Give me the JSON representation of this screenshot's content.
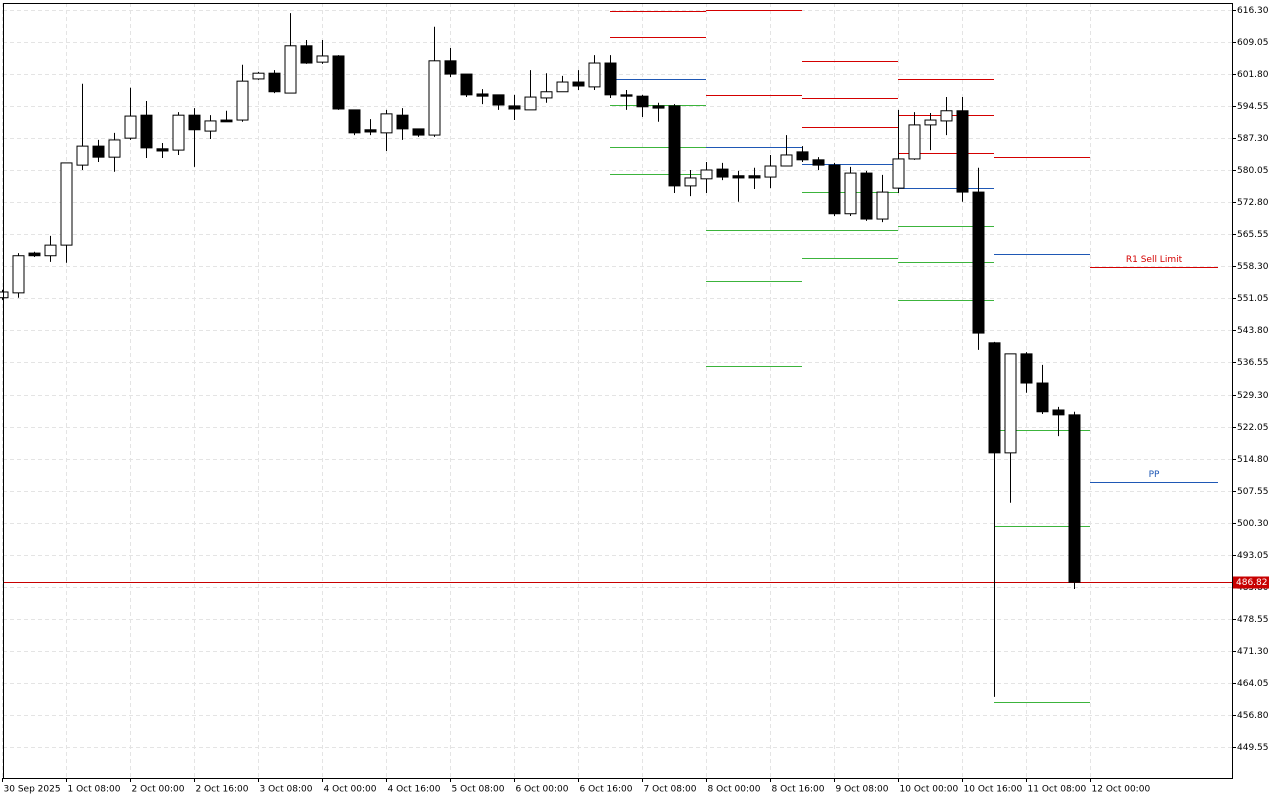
{
  "chart_data": {
    "type": "candlestick",
    "categories": [
      "30 Sep 2025",
      null,
      null,
      null,
      "1 Oct 08:00",
      null,
      null,
      null,
      "2 Oct 00:00",
      null,
      null,
      null,
      "2 Oct 16:00",
      null,
      null,
      null,
      "3 Oct 08:00",
      null,
      null,
      null,
      "4 Oct 00:00",
      null,
      null,
      null,
      "4 Oct 16:00",
      null,
      null,
      null,
      "5 Oct 08:00",
      null,
      null,
      null,
      "6 Oct 00:00",
      null,
      null,
      null,
      "6 Oct 16:00",
      null,
      null,
      null,
      "7 Oct 08:00",
      null,
      null,
      null,
      "8 Oct 00:00",
      null,
      null,
      null,
      "8 Oct 16:00",
      null,
      null,
      null,
      "9 Oct 08:00",
      null,
      null,
      null,
      "10 Oct 00:00",
      null,
      null,
      null,
      "10 Oct 16:00",
      null,
      null,
      null,
      "11 Oct 08:00",
      null,
      null,
      null,
      "12 Oct 00:00"
    ],
    "open": [
      551.2,
      552.3,
      561.3,
      560.7,
      563.1,
      581.2,
      585.5,
      583.0,
      587.3,
      592.5,
      584.9,
      584.6,
      592.5,
      588.9,
      591.4,
      591.4,
      600.7,
      602.0,
      597.5,
      608.2,
      604.5,
      605.9,
      593.7,
      589.2,
      588.5,
      592.5,
      589.4,
      588.0,
      604.8,
      601.8,
      597.3,
      597.1,
      594.6,
      593.7,
      596.4,
      597.8,
      600.0,
      598.9,
      604.3,
      597.1,
      596.8,
      594.6,
      594.6,
      576.5,
      578.1,
      580.3,
      578.8,
      578.8,
      578.5,
      581.0,
      584.2,
      582.4,
      581.2,
      570.2,
      579.4,
      569.0,
      576.0,
      582.6,
      590.3,
      591.2,
      593.5,
      575.1,
      541.0,
      516.1,
      538.5,
      531.9,
      525.8,
      524.7,
      null
    ],
    "high": [
      553.0,
      561.3,
      561.6,
      565.2,
      581.7,
      599.6,
      586.9,
      588.5,
      598.7,
      595.7,
      586.2,
      593.2,
      594.1,
      592.5,
      593.5,
      603.9,
      602.3,
      602.7,
      615.6,
      609.5,
      609.5,
      606.1,
      593.7,
      591.6,
      593.7,
      594.1,
      589.4,
      612.5,
      607.7,
      601.8,
      598.4,
      597.1,
      597.1,
      602.7,
      602.0,
      601.4,
      602.7,
      606.1,
      606.1,
      598.2,
      597.1,
      595.3,
      595.0,
      580.1,
      581.9,
      581.7,
      579.9,
      580.6,
      583.5,
      588.0,
      585.5,
      583.0,
      581.7,
      580.8,
      579.9,
      579.0,
      593.7,
      593.2,
      593.0,
      596.6,
      596.6,
      580.6,
      541.2,
      538.5,
      538.9,
      536.0,
      526.5,
      525.4,
      null
    ],
    "low": [
      550.7,
      551.2,
      560.4,
      559.3,
      559.1,
      580.1,
      581.9,
      579.7,
      586.9,
      582.8,
      582.8,
      583.5,
      580.8,
      587.1,
      591.0,
      591.0,
      600.5,
      597.5,
      597.5,
      604.1,
      604.1,
      593.7,
      588.0,
      588.0,
      584.4,
      586.9,
      587.6,
      587.6,
      601.1,
      596.6,
      595.0,
      593.7,
      591.4,
      593.7,
      595.3,
      597.8,
      598.2,
      598.2,
      596.4,
      593.7,
      592.1,
      591.0,
      574.9,
      574.2,
      574.9,
      577.8,
      572.9,
      575.8,
      576.0,
      581.0,
      581.9,
      580.1,
      569.7,
      569.7,
      568.6,
      568.3,
      574.9,
      582.4,
      584.6,
      588.0,
      572.9,
      539.4,
      460.9,
      504.8,
      529.7,
      524.9,
      519.9,
      485.3,
      null
    ],
    "close": [
      552.5,
      560.7,
      560.7,
      563.1,
      581.7,
      585.5,
      583.0,
      586.9,
      592.3,
      585.1,
      584.4,
      592.5,
      589.2,
      591.2,
      591.0,
      600.2,
      602.0,
      597.8,
      608.2,
      604.3,
      605.9,
      593.9,
      588.5,
      588.7,
      592.8,
      589.4,
      588.0,
      604.8,
      601.8,
      597.1,
      596.8,
      594.8,
      593.9,
      596.6,
      597.8,
      600.0,
      599.1,
      604.3,
      597.1,
      596.8,
      594.4,
      594.1,
      576.5,
      578.3,
      580.1,
      578.5,
      578.3,
      578.3,
      581.0,
      583.5,
      582.4,
      581.2,
      570.2,
      579.4,
      569.0,
      575.1,
      582.6,
      590.3,
      591.4,
      593.5,
      575.1,
      543.2,
      516.1,
      538.5,
      531.9,
      525.4,
      524.7,
      486.82,
      null
    ],
    "up_color": "#ffffff",
    "down_color": "#000000",
    "ylim": [
      442.54,
      617.88
    ],
    "yticks": [
      {
        "value": 616.3,
        "label": "616.30"
      },
      609.05,
      {
        "value": 601.8,
        "label": "601.80"
      },
      594.55,
      {
        "value": 587.3,
        "label": "587.30"
      },
      580.05,
      {
        "value": 572.8,
        "label": "572.80"
      },
      565.55,
      {
        "value": 558.3,
        "label": "558.30"
      },
      551.05,
      {
        "value": 543.8,
        "label": "543.80"
      },
      536.55,
      {
        "value": 529.3,
        "label": "529.30"
      },
      522.05,
      {
        "value": 514.8,
        "label": "514.80"
      },
      507.55,
      {
        "value": 500.3,
        "label": "500.30"
      },
      493.05,
      {
        "value": 485.8,
        "label": "485.80"
      },
      478.55,
      {
        "value": 471.3,
        "label": "471.30"
      },
      464.05,
      {
        "value": 456.8,
        "label": "456.80"
      },
      449.55
    ],
    "grid": true,
    "levels": [
      {
        "start": 38,
        "end": 44,
        "value": 616.1,
        "color": "#d40000"
      },
      {
        "start": 38,
        "end": 44,
        "value": 610.2,
        "color": "#d40000"
      },
      {
        "start": 38,
        "end": 44,
        "value": 600.7,
        "color": "#1f58b5"
      },
      {
        "start": 38,
        "end": 44,
        "value": 594.8,
        "color": "#3cb43c"
      },
      {
        "start": 38,
        "end": 44,
        "value": 585.3,
        "color": "#3cb43c"
      },
      {
        "start": 38,
        "end": 44,
        "value": 579.2,
        "color": "#3cb43c"
      },
      {
        "start": 44,
        "end": 50,
        "value": 616.3,
        "color": "#d40000"
      },
      {
        "start": 44,
        "end": 50,
        "value": 597.1,
        "color": "#d40000"
      },
      {
        "start": 44,
        "end": 50,
        "value": 585.3,
        "color": "#1f58b5"
      },
      {
        "start": 44,
        "end": 50,
        "value": 566.5,
        "color": "#3cb43c"
      },
      {
        "start": 44,
        "end": 50,
        "value": 555.0,
        "color": "#3cb43c"
      },
      {
        "start": 44,
        "end": 50,
        "value": 535.8,
        "color": "#3cb43c"
      },
      {
        "start": 50,
        "end": 56,
        "value": 604.8,
        "color": "#d40000"
      },
      {
        "start": 50,
        "end": 56,
        "value": 596.4,
        "color": "#d40000"
      },
      {
        "start": 50,
        "end": 56,
        "value": 589.8,
        "color": "#d40000"
      },
      {
        "start": 50,
        "end": 56,
        "value": 581.5,
        "color": "#1f58b5"
      },
      {
        "start": 50,
        "end": 56,
        "value": 575.1,
        "color": "#3cb43c"
      },
      {
        "start": 50,
        "end": 56,
        "value": 566.5,
        "color": "#3cb43c"
      },
      {
        "start": 50,
        "end": 56,
        "value": 560.2,
        "color": "#3cb43c"
      },
      {
        "start": 56,
        "end": 62,
        "value": 600.7,
        "color": "#d40000"
      },
      {
        "start": 56,
        "end": 62,
        "value": 592.5,
        "color": "#d40000"
      },
      {
        "start": 56,
        "end": 62,
        "value": 584.0,
        "color": "#d40000"
      },
      {
        "start": 56,
        "end": 62,
        "value": 576.0,
        "color": "#1f58b5"
      },
      {
        "start": 56,
        "end": 62,
        "value": 567.4,
        "color": "#3cb43c"
      },
      {
        "start": 56,
        "end": 62,
        "value": 559.3,
        "color": "#3cb43c"
      },
      {
        "start": 56,
        "end": 62,
        "value": 550.7,
        "color": "#3cb43c"
      },
      {
        "start": 62,
        "end": 68,
        "value": 583.0,
        "color": "#d40000"
      },
      {
        "start": 62,
        "end": 68,
        "value": 561.1,
        "color": "#1f58b5"
      },
      {
        "start": 62,
        "end": 68,
        "value": 521.3,
        "color": "#3cb43c"
      },
      {
        "start": 62,
        "end": 68,
        "value": 499.6,
        "color": "#3cb43c"
      },
      {
        "start": 62,
        "end": 68,
        "value": 459.8,
        "color": "#3cb43c"
      },
      {
        "start": 68,
        "end": 76,
        "value": 558.2,
        "color": "#d40000",
        "label": "R1 Sell Limit"
      },
      {
        "start": 68,
        "end": 76,
        "value": 509.5,
        "color": "#1f58b5",
        "label": "PP"
      }
    ],
    "current_price": {
      "value": 486.82,
      "color": "#c80000"
    }
  }
}
